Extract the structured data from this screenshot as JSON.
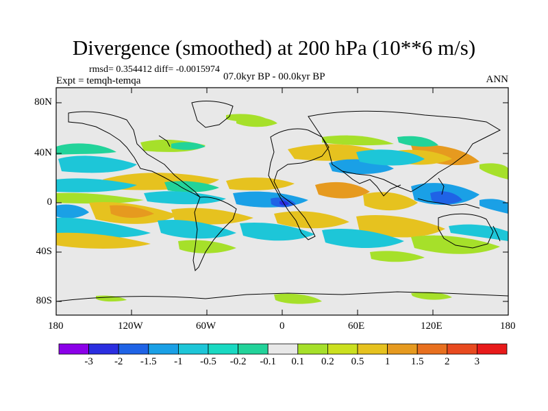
{
  "title": "Divergence (smoothed) at 200 hPa (10**6 m/s)",
  "stats": "rmsd= 0.354412 diff= -0.0015974",
  "experiment": "Expt = temqh-temqa",
  "period": "07.0kyr BP - 00.0kyr BP",
  "season": "ANN",
  "axes": {
    "lat_labels": [
      "80N",
      "40N",
      "0",
      "40S",
      "80S"
    ],
    "lon_labels": [
      "180",
      "120W",
      "60W",
      "0",
      "60E",
      "120E",
      "180"
    ]
  },
  "colorbar": {
    "labels": [
      "-3",
      "-2",
      "-1.5",
      "-1",
      "-0.5",
      "-0.2",
      "-0.1",
      "0.1",
      "0.2",
      "0.5",
      "1",
      "1.5",
      "2",
      "3"
    ],
    "colors": [
      "#8b00e8",
      "#2b2ee0",
      "#1f63e6",
      "#1aa0e6",
      "#1dc6d8",
      "#19d9c2",
      "#22d39a",
      "#e8e8e8",
      "#a6e02a",
      "#cbe01f",
      "#e6c21f",
      "#e69a1f",
      "#e8701f",
      "#e84a1f",
      "#e81a1a"
    ]
  },
  "colors": {
    "background": "#e8e8e8",
    "coast": "#000000"
  }
}
